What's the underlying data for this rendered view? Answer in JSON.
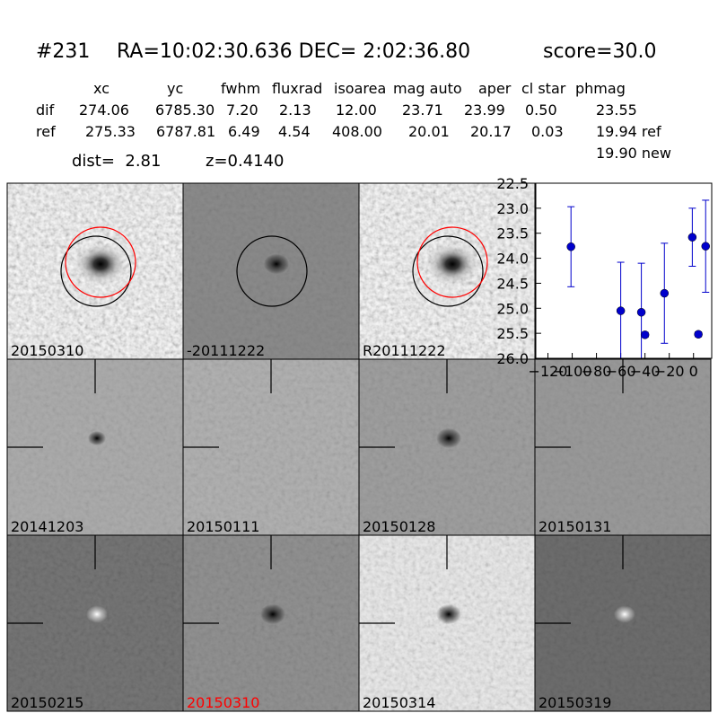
{
  "header": {
    "id": "#231",
    "coords": "RA=10:02:30.636 DEC= 2:02:36.80",
    "score": "score=30.0"
  },
  "table": {
    "columns": [
      "xc",
      "yc",
      "fwhm",
      "fluxrad",
      "isoarea",
      "mag auto",
      "aper",
      "cl star",
      "phmag"
    ],
    "rows": [
      [
        "dif",
        "274.06",
        "6785.30",
        "7.20",
        "2.13",
        "12.00",
        "23.71",
        "23.99",
        "0.50",
        "23.55"
      ],
      [
        "ref",
        "275.33",
        "6787.81",
        "6.49",
        "4.54",
        "408.00",
        "20.01",
        "20.17",
        "0.03",
        "19.94 ref"
      ]
    ],
    "extra": "19.90 new"
  },
  "info": {
    "dist": "dist=  2.81",
    "z": "z=0.4140"
  },
  "stamps": [
    {
      "label": "20150310",
      "color": "black"
    },
    {
      "label": "-20111222",
      "color": "black"
    },
    {
      "label": "R20111222",
      "color": "black"
    },
    {
      "label": "20141203",
      "color": "black"
    },
    {
      "label": "20150111",
      "color": "black"
    },
    {
      "label": "20150128",
      "color": "black"
    },
    {
      "label": "20150131",
      "color": "black"
    },
    {
      "label": "20150215",
      "color": "black"
    },
    {
      "label": "20150310",
      "color": "red"
    },
    {
      "label": "20150314",
      "color": "black"
    },
    {
      "label": "20150319",
      "color": "black"
    }
  ],
  "chart_data": {
    "type": "scatter",
    "color": "#0000cc",
    "x": [
      -101,
      -60,
      -43,
      -40,
      -24,
      -1,
      4,
      10
    ],
    "values": [
      23.77,
      25.05,
      25.08,
      25.53,
      24.7,
      23.58,
      25.52,
      23.76
    ],
    "errors": [
      0.8,
      0.97,
      0.98,
      0.05,
      1.0,
      0.58,
      0.05,
      0.92
    ],
    "xlim": [
      -130,
      15
    ],
    "xticks": [
      {
        "value": -120,
        "label": "−120"
      },
      {
        "value": -100,
        "label": "−100"
      },
      {
        "value": -80,
        "label": "−80"
      },
      {
        "value": -60,
        "label": "−60"
      },
      {
        "value": -40,
        "label": "−40"
      },
      {
        "value": -20,
        "label": "−20"
      },
      0
    ],
    "ylim": [
      26.0,
      22.5
    ],
    "yticks": [
      22.5,
      {
        "value": 23,
        "label": "23.0"
      },
      23.5,
      {
        "value": 24,
        "label": "24.0"
      },
      24.5,
      {
        "value": 25,
        "label": "25.0"
      },
      25.5,
      {
        "value": 26,
        "label": "26.0"
      }
    ]
  }
}
